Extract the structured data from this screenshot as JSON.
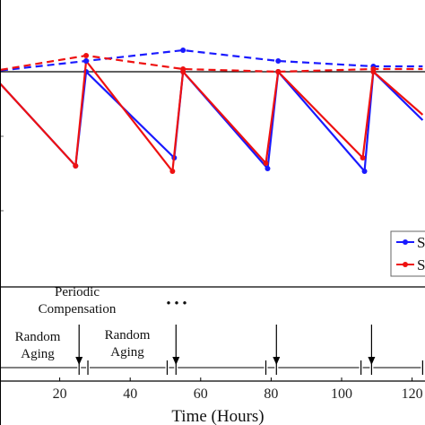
{
  "chart_data": {
    "type": "line",
    "xlabel": "Time (Hours)",
    "xlim": [
      0,
      123
    ],
    "ylim": [
      0,
      100
    ],
    "x_ticks": [
      "20",
      "40",
      "60",
      "80",
      "100",
      "120"
    ],
    "reference_line": {
      "y": 80
    },
    "series": [
      {
        "name": "S",
        "color": "#1a1aff",
        "style": "solid",
        "points": [
          [
            0,
            80
          ],
          [
            24.5,
            45
          ],
          [
            27.5,
            80
          ],
          [
            52.5,
            48
          ],
          [
            55,
            80
          ],
          [
            79,
            44
          ],
          [
            82,
            80
          ],
          [
            106.5,
            43
          ],
          [
            109,
            80
          ],
          [
            123,
            62
          ]
        ]
      },
      {
        "name": "S",
        "color": "#ee1111",
        "style": "solid",
        "points": [
          [
            0,
            80
          ],
          [
            24.5,
            45
          ],
          [
            27.5,
            84
          ],
          [
            52,
            43
          ],
          [
            55,
            80
          ],
          [
            78.5,
            46
          ],
          [
            82,
            80
          ],
          [
            106,
            48
          ],
          [
            109,
            80
          ],
          [
            123,
            64
          ]
        ]
      },
      {
        "color": "#1a1aff",
        "style": "dashed",
        "points": [
          [
            0,
            80
          ],
          [
            27.5,
            84
          ],
          [
            55,
            88
          ],
          [
            82,
            84
          ],
          [
            109,
            82
          ],
          [
            123,
            82
          ]
        ]
      },
      {
        "color": "#ee1111",
        "style": "dashed",
        "points": [
          [
            0,
            80
          ],
          [
            27.5,
            86
          ],
          [
            55,
            81
          ],
          [
            82,
            80
          ],
          [
            109,
            81
          ],
          [
            123,
            81
          ]
        ]
      }
    ],
    "phases": {
      "boundaries": [
        0,
        25.5,
        28,
        50.5,
        53,
        78.5,
        81.5,
        105.5,
        108.5,
        123
      ],
      "random_aging": "Random\nAging",
      "random_aging_2": "Random\nAging",
      "periodic_compensation": "Periodic\nCompensation",
      "ellipsis": "• • •",
      "event_hours": [
        25.5,
        53,
        81.5,
        108.5
      ]
    }
  }
}
